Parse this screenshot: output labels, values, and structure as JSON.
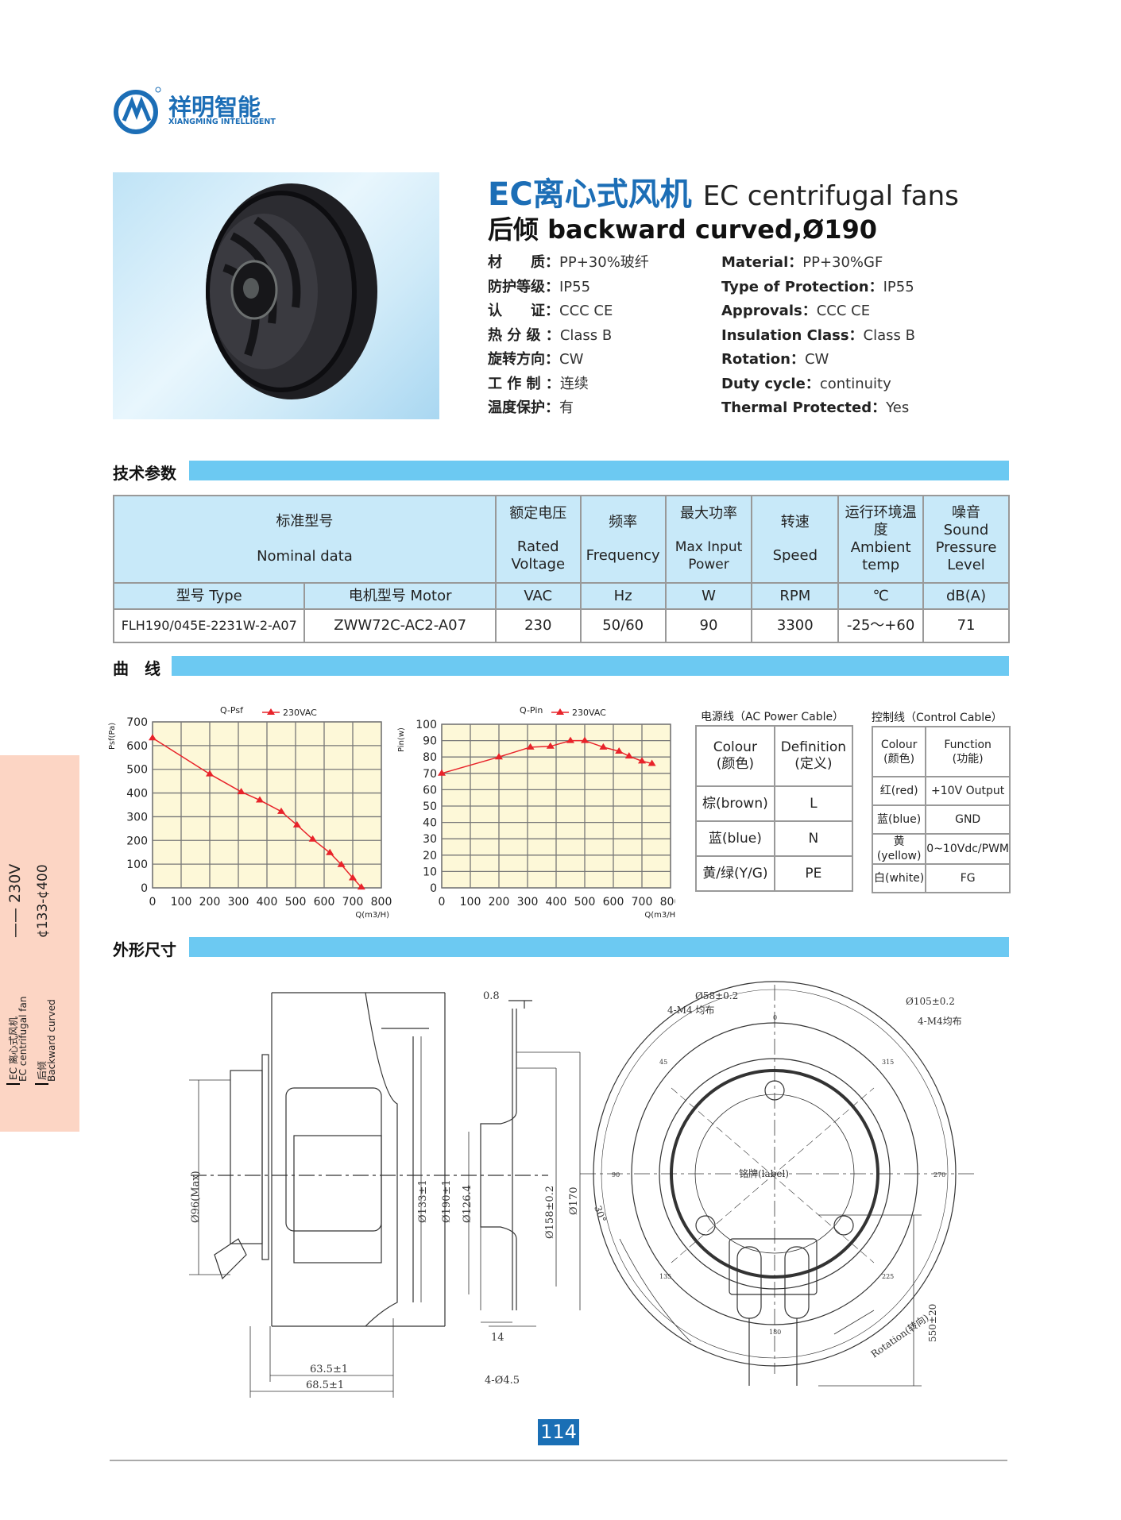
{
  "brand": {
    "name_cn": "祥明智能",
    "name_en": "XIANGMING INTELLIGENT",
    "registered": "®",
    "color": "#1c6eb6"
  },
  "header": {
    "title_cn": "EC离心式风机",
    "title_en": "EC centrifugal fans",
    "subtitle": "后倾  backward curved,Ø190"
  },
  "specs_cn": [
    {
      "label": "材　　质：",
      "value": "PP+30%玻纤"
    },
    {
      "label": "防护等级：",
      "value": "IP55"
    },
    {
      "label": "认　　证：",
      "value": "CCC  CE"
    },
    {
      "label": "热 分 级 ：",
      "value": "Class  B"
    },
    {
      "label": "旋转方向：",
      "value": "CW"
    },
    {
      "label": "工 作 制 ：",
      "value": "连续"
    },
    {
      "label": "温度保护：",
      "value": "有"
    }
  ],
  "specs_en": [
    {
      "label": "Material：",
      "value": "PP+30%GF"
    },
    {
      "label": "Type of Protection：",
      "value": "IP55"
    },
    {
      "label": "Approvals：",
      "value": "CCC  CE"
    },
    {
      "label": "Insulation Class：",
      "value": "Class  B"
    },
    {
      "label": "Rotation：",
      "value": "CW"
    },
    {
      "label": "Duty cycle：",
      "value": "continuity"
    },
    {
      "label": "Thermal  Protected：",
      "value": "Yes"
    }
  ],
  "sections": {
    "tech": "技术参数",
    "curve": "曲　线",
    "dims": "外形尺寸",
    "accent": "#6cc9f2"
  },
  "table": {
    "nominal_cn": "标准型号",
    "nominal_en": "Nominal  data",
    "headers": [
      {
        "cn": "额定电压",
        "en": "Rated Voltage"
      },
      {
        "cn": "频率",
        "en": "Frequency"
      },
      {
        "cn": "最大功率",
        "en": "Max Input Power"
      },
      {
        "cn": "转速",
        "en": "Speed"
      },
      {
        "cn": "运行环境温度",
        "en": "Ambient temp"
      },
      {
        "cn": "噪音",
        "en": "Sound Pressure Level"
      }
    ],
    "units": [
      "型号 Type",
      "电机型号 Motor",
      "VAC",
      "Hz",
      "W",
      "RPM",
      "℃",
      "dB(A)"
    ],
    "row": [
      "FLH190/045E-2231W-2-A07",
      "ZWW72C-AC2-A07",
      "230",
      "50/60",
      "90",
      "3300",
      "-25～+60",
      "71"
    ]
  },
  "chart_data": [
    {
      "type": "line",
      "title": "Q-Psf",
      "ylabel": "Psf(Pa)",
      "xlabel": "Q(m3/H)",
      "xlim": [
        0,
        800
      ],
      "ylim": [
        0,
        700
      ],
      "xticks": [
        0,
        100,
        200,
        300,
        400,
        500,
        600,
        700,
        800
      ],
      "yticks": [
        0,
        100,
        200,
        300,
        400,
        500,
        600,
        700
      ],
      "grid": true,
      "legend": "top",
      "background": "#fdf8d8",
      "color": "#e8232a",
      "series": [
        {
          "name": "230VAC",
          "x": [
            0,
            200,
            310,
            375,
            450,
            505,
            560,
            620,
            660,
            700,
            730
          ],
          "y": [
            632,
            480,
            405,
            370,
            322,
            265,
            205,
            148,
            98,
            42,
            3
          ]
        }
      ]
    },
    {
      "type": "line",
      "title": "Q-Pin",
      "ylabel": "Pin(w)",
      "xlabel": "Q(m3/H)",
      "xlim": [
        0,
        800
      ],
      "ylim": [
        0,
        100
      ],
      "xticks": [
        0,
        100,
        200,
        300,
        400,
        500,
        600,
        700,
        800
      ],
      "yticks": [
        0,
        10,
        20,
        30,
        40,
        50,
        60,
        70,
        80,
        90,
        100
      ],
      "grid": true,
      "legend": "top",
      "background": "#fdf8d8",
      "color": "#e8232a",
      "series": [
        {
          "name": "230VAC",
          "x": [
            0,
            200,
            310,
            380,
            450,
            500,
            565,
            620,
            655,
            700,
            735
          ],
          "y": [
            70,
            80,
            86,
            86.5,
            90,
            90,
            86,
            83.5,
            80.5,
            77.5,
            76
          ]
        }
      ]
    }
  ],
  "ac_cable": {
    "caption": "电源线（AC Power Cable）",
    "h1": "Colour\n(颜色)",
    "h2": "Definition\n(定义)",
    "rows": [
      [
        "棕(brown)",
        "L"
      ],
      [
        "蓝(blue)",
        "N"
      ],
      [
        "黄/绿(Y/G)",
        "PE"
      ]
    ]
  },
  "ctrl_cable": {
    "caption": "控制线（Control Cable）",
    "h1": "Colour\n(颜色)",
    "h2": "Function\n(功能)",
    "rows": [
      [
        "红(red)",
        "+10V Output"
      ],
      [
        "蓝(blue)",
        "GND"
      ],
      [
        "黄(yellow)",
        "0~10Vdc/PWM"
      ],
      [
        "白(white)",
        "FG"
      ]
    ]
  },
  "drawing": {
    "d96": "Ø96(Max)",
    "d133": "Ø133±1",
    "d190": "Ø190±1",
    "w635": "63.5±1",
    "w685": "68.5±1",
    "t08": "0.8",
    "d1264": "Ø126.4",
    "d158": "Ø158±0.2",
    "d170": "Ø170",
    "w14": "14",
    "holes45": "4-Ø4.5",
    "d58": "Ø58±0.2",
    "m4a": "4-M4 均布",
    "d105": "Ø105±0.2",
    "m4b": "4-M4均布",
    "label": "铭牌(label)",
    "ang30": "30°",
    "cable": "550±20",
    "rotation": "Rotation(转向)",
    "deg0": "0",
    "deg45": "45",
    "deg90": "90",
    "deg135": "135",
    "deg180": "180",
    "deg225": "225",
    "deg270": "270",
    "deg315": "315"
  },
  "side_tab": {
    "voltage": "—— 230V",
    "range": "¢133-¢400",
    "l1": "EC 离心式风机",
    "l2": "EC centrifugal fan",
    "l3": "后倾",
    "l4": "Backward curved",
    "color": "#fcd5c4"
  },
  "page_number": "114"
}
